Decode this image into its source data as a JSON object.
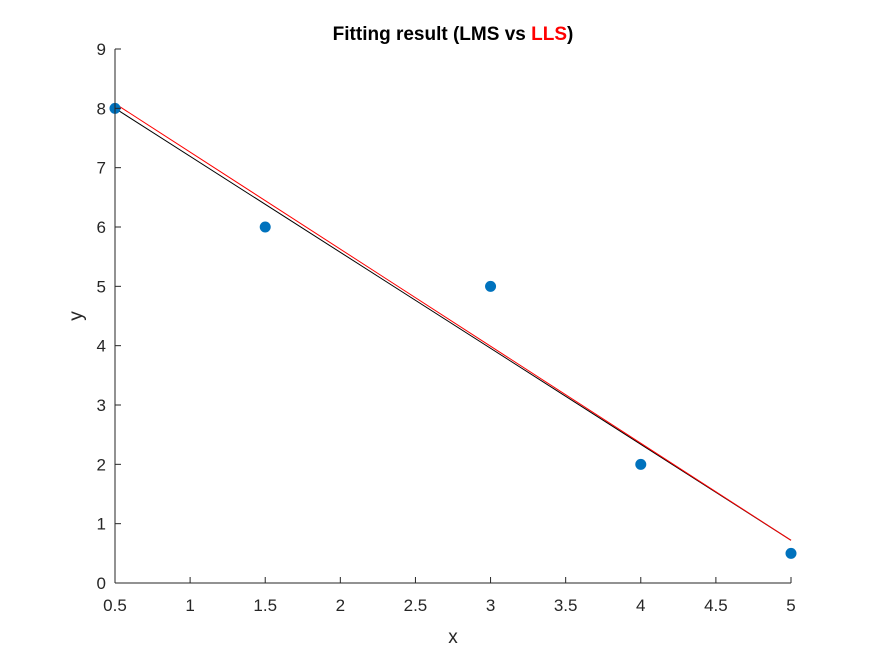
{
  "chart_data": {
    "type": "scatter",
    "title": {
      "prefix": "Fitting result (LMS vs ",
      "highlight": "LLS",
      "suffix": ")",
      "highlight_color": "#ff0000"
    },
    "xlabel": "x",
    "ylabel": "y",
    "xlim": [
      0.5,
      5
    ],
    "ylim": [
      0,
      9
    ],
    "xticks": [
      "0.5",
      "1",
      "1.5",
      "2",
      "2.5",
      "3",
      "3.5",
      "4",
      "4.5",
      "5"
    ],
    "yticks": [
      "0",
      "1",
      "2",
      "3",
      "4",
      "5",
      "6",
      "7",
      "8",
      "9"
    ],
    "grid": false,
    "points": {
      "color": "#0072bd",
      "x": [
        0.5,
        1.5,
        3,
        4,
        5
      ],
      "y": [
        8,
        6,
        5,
        2,
        0.5
      ]
    },
    "lines": [
      {
        "color": "#000000",
        "x": [
          0.5,
          5
        ],
        "y": [
          8.0,
          0.72
        ]
      },
      {
        "color": "#ff0000",
        "x": [
          0.5,
          5
        ],
        "y": [
          8.08,
          0.72
        ]
      }
    ]
  }
}
